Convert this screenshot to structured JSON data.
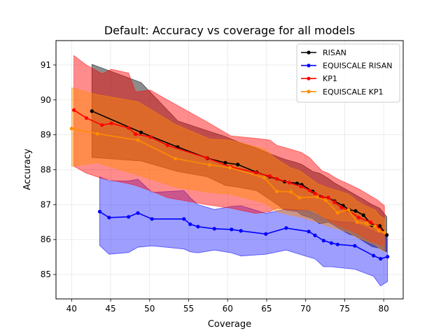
{
  "chart_data": {
    "type": "line",
    "title": "Default: Accuracy vs coverage for all models",
    "xlabel": "Coverage",
    "ylabel": "Accuracy",
    "xlim": [
      38,
      82.5
    ],
    "ylim": [
      84.3,
      91.7
    ],
    "xticks": [
      40,
      45,
      50,
      55,
      60,
      65,
      70,
      75,
      80
    ],
    "yticks": [
      85,
      86,
      87,
      88,
      89,
      90,
      91
    ],
    "grid": true,
    "legend_position": "top-right",
    "series": [
      {
        "name": "RISAN",
        "color": "#000000",
        "band_color": "#000000",
        "band_opacity": 0.45,
        "x": [
          42.6,
          48.9,
          53.6,
          57.4,
          59.7,
          61.3,
          63.7,
          65.4,
          67.3,
          68.9,
          69.5,
          70.9,
          71.8,
          72.9,
          73.7,
          74.8,
          75.6,
          76.4,
          77.4,
          78.5,
          79.5,
          80.4
        ],
        "y": [
          89.68,
          89.07,
          88.65,
          88.33,
          88.2,
          88.15,
          87.93,
          87.8,
          87.66,
          87.61,
          87.57,
          87.38,
          87.23,
          87.2,
          87.1,
          86.97,
          86.85,
          86.82,
          86.7,
          86.41,
          86.39,
          86.13
        ],
        "lower": [
          88.35,
          88.25,
          87.95,
          87.8,
          87.55,
          87.5,
          87.4,
          87.15,
          86.85,
          86.8,
          86.7,
          86.6,
          86.45,
          86.5,
          86.4,
          86.25,
          86.15,
          86.1,
          85.95,
          85.8,
          85.75,
          85.65
        ],
        "upper": [
          91.02,
          90.5,
          89.4,
          89.12,
          88.95,
          88.8,
          88.62,
          88.46,
          88.3,
          88.2,
          88.15,
          87.95,
          87.9,
          87.75,
          87.62,
          87.48,
          87.38,
          87.28,
          87.15,
          87.0,
          86.9,
          86.65
        ]
      },
      {
        "name": "EQUISCALE RISAN",
        "color": "#0000ff",
        "band_color": "#0000ff",
        "band_opacity": 0.38,
        "x": [
          43.6,
          44.8,
          47.3,
          48.5,
          50.3,
          54.4,
          55.2,
          56.2,
          58.3,
          60.5,
          61.7,
          64.9,
          67.5,
          70.4,
          71.2,
          72.3,
          73.3,
          74.1,
          76.3,
          78.7,
          79.6,
          80.5
        ],
        "y": [
          86.8,
          86.63,
          86.65,
          86.76,
          86.59,
          86.59,
          86.44,
          86.37,
          86.31,
          86.29,
          86.25,
          86.16,
          86.33,
          86.23,
          86.12,
          85.97,
          85.9,
          85.86,
          85.82,
          85.54,
          85.45,
          85.51
        ],
        "lower": [
          85.83,
          85.58,
          85.63,
          85.78,
          85.82,
          85.73,
          85.65,
          85.62,
          85.7,
          85.62,
          85.53,
          85.58,
          85.7,
          85.5,
          85.45,
          85.22,
          85.22,
          85.2,
          85.15,
          84.95,
          84.67,
          84.8
        ],
        "upper": [
          87.8,
          87.68,
          87.68,
          87.73,
          87.35,
          87.4,
          87.2,
          87.0,
          86.86,
          86.95,
          86.97,
          86.75,
          86.87,
          86.82,
          86.75,
          86.6,
          86.55,
          86.52,
          86.48,
          86.24,
          86.15,
          86.18
        ]
      },
      {
        "name": "KP1",
        "color": "#ff0000",
        "band_color": "#ff0000",
        "band_opacity": 0.45,
        "x": [
          40.3,
          41.9,
          43.9,
          45.1,
          47.3,
          48.2,
          50.1,
          52.3,
          57.3,
          60.4,
          63.6,
          65.4,
          66.3,
          67.9,
          69.4,
          70.5,
          71.2,
          72.1,
          72.9,
          73.7,
          74.6,
          75.4,
          76.8,
          78.3,
          79.1,
          80.1
        ],
        "y": [
          89.71,
          89.48,
          89.28,
          89.33,
          89.2,
          89.02,
          88.94,
          88.7,
          88.34,
          88.08,
          87.92,
          87.82,
          87.74,
          87.63,
          87.52,
          87.41,
          87.32,
          87.22,
          87.2,
          87.07,
          86.92,
          86.84,
          86.63,
          86.5,
          86.39,
          86.19
        ],
        "lower": [
          88.1,
          87.9,
          87.75,
          87.7,
          87.6,
          87.55,
          87.4,
          87.2,
          87.0,
          86.9,
          86.75,
          86.8,
          86.9,
          86.85,
          86.85,
          86.85,
          86.8,
          86.65,
          86.55,
          86.45,
          86.35,
          86.3,
          86.15,
          85.95,
          85.9,
          85.8
        ],
        "upper": [
          91.27,
          91.0,
          90.75,
          90.88,
          90.77,
          90.23,
          90.28,
          90.0,
          89.38,
          88.97,
          88.9,
          88.85,
          88.7,
          88.6,
          88.5,
          88.35,
          88.18,
          87.97,
          87.9,
          87.78,
          87.68,
          87.6,
          87.45,
          87.25,
          87.15,
          86.97
        ]
      },
      {
        "name": "EQUISCALE KP1",
        "color": "#ff8c00",
        "band_color": "#ff8c00",
        "band_opacity": 0.45,
        "x": [
          40.0,
          43.3,
          48.5,
          53.3,
          57.7,
          60.3,
          64.7,
          66.3,
          68.1,
          69.2,
          71.5,
          72.6,
          74.1,
          75.5,
          76.6,
          77.8,
          78.9,
          79.4,
          80.1
        ],
        "y": [
          89.18,
          89.03,
          88.85,
          88.32,
          88.14,
          88.06,
          87.77,
          87.38,
          87.37,
          87.2,
          87.22,
          87.12,
          86.77,
          86.85,
          86.5,
          86.46,
          86.38,
          86.26,
          86.2
        ],
        "lower": [
          88.1,
          88.2,
          87.85,
          87.5,
          87.35,
          87.3,
          87.05,
          86.8,
          86.7,
          86.65,
          86.5,
          86.4,
          86.3,
          86.2,
          86.05,
          85.95,
          85.85,
          85.75,
          85.65
        ],
        "upper": [
          90.35,
          90.15,
          89.95,
          89.3,
          88.88,
          88.85,
          88.6,
          88.3,
          88.05,
          87.98,
          87.6,
          87.5,
          87.4,
          87.3,
          87.1,
          86.95,
          86.85,
          86.7,
          86.6
        ]
      }
    ]
  }
}
